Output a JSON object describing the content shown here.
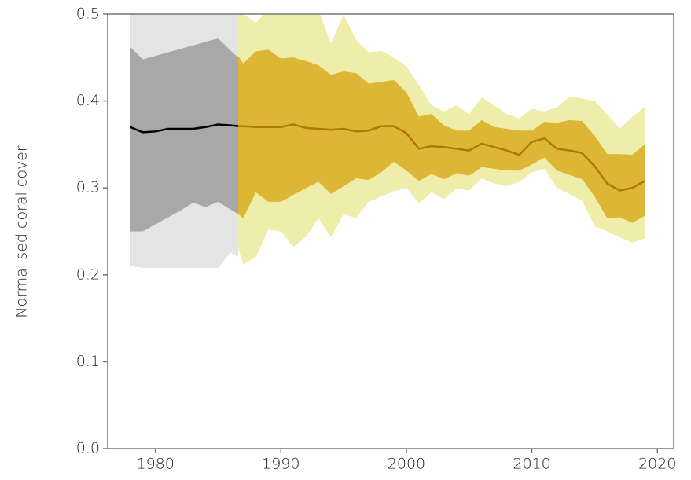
{
  "chart_data": {
    "type": "line",
    "ylabel": "Normalised coral cover",
    "xlim": [
      1976.2,
      2021.3
    ],
    "ylim": [
      0,
      0.5
    ],
    "xticks": [
      1980,
      1990,
      2000,
      2010,
      2020
    ],
    "yticks": [
      {
        "value": 0,
        "label": "0.0"
      },
      0.1,
      0.2,
      0.3,
      0.4,
      0.5
    ],
    "series": [
      {
        "color": "#000000",
        "band_color": "#a8a8a8",
        "outer_color": "#e4e4e4",
        "x": [
          1978,
          1979,
          1980,
          1981,
          1982,
          1983,
          1984,
          1985,
          1986,
          1986.6
        ],
        "values": [
          0.37,
          0.364,
          0.365,
          0.368,
          0.368,
          0.368,
          0.37,
          0.373,
          0.372,
          0.371
        ],
        "upper": [
          0.462,
          0.448,
          0.452,
          0.456,
          0.46,
          0.464,
          0.468,
          0.472,
          0.458,
          0.45
        ],
        "lower": [
          0.25,
          0.25,
          0.258,
          0.266,
          0.274,
          0.283,
          0.278,
          0.284,
          0.275,
          0.27
        ],
        "outer_upper": [
          0.5,
          0.5,
          0.5,
          0.5,
          0.5,
          0.5,
          0.5,
          0.5,
          0.5,
          0.5
        ],
        "outer_lower": [
          0.21,
          0.208,
          0.208,
          0.208,
          0.208,
          0.208,
          0.208,
          0.208,
          0.226,
          0.22
        ]
      },
      {
        "color": "#b07800",
        "band_color": "#dcb634",
        "outer_color": "#eeeeaa",
        "x": [
          1986.6,
          1987,
          1988,
          1989,
          1990,
          1991,
          1992,
          1993,
          1994,
          1995,
          1996,
          1997,
          1998,
          1999,
          2000,
          2001,
          2002,
          2003,
          2004,
          2005,
          2006,
          2007,
          2008,
          2009,
          2010,
          2011,
          2012,
          2013,
          2014,
          2015,
          2016,
          2017,
          2018,
          2019
        ],
        "values": [
          0.371,
          0.371,
          0.37,
          0.37,
          0.37,
          0.373,
          0.369,
          0.368,
          0.367,
          0.368,
          0.365,
          0.366,
          0.371,
          0.371,
          0.363,
          0.345,
          0.348,
          0.347,
          0.345,
          0.343,
          0.351,
          0.347,
          0.343,
          0.338,
          0.353,
          0.357,
          0.345,
          0.343,
          0.34,
          0.325,
          0.305,
          0.297,
          0.3,
          0.308
        ],
        "upper": [
          0.452,
          0.443,
          0.457,
          0.459,
          0.449,
          0.45,
          0.446,
          0.441,
          0.43,
          0.434,
          0.432,
          0.42,
          0.422,
          0.424,
          0.41,
          0.382,
          0.385,
          0.372,
          0.366,
          0.366,
          0.378,
          0.37,
          0.368,
          0.366,
          0.366,
          0.376,
          0.375,
          0.378,
          0.377,
          0.36,
          0.339,
          0.339,
          0.338,
          0.35
        ],
        "lower": [
          0.27,
          0.265,
          0.295,
          0.284,
          0.284,
          0.292,
          0.3,
          0.307,
          0.293,
          0.302,
          0.311,
          0.309,
          0.318,
          0.33,
          0.32,
          0.308,
          0.316,
          0.31,
          0.317,
          0.314,
          0.324,
          0.322,
          0.32,
          0.32,
          0.327,
          0.335,
          0.32,
          0.315,
          0.31,
          0.29,
          0.265,
          0.266,
          0.26,
          0.268
        ],
        "outer_upper": [
          0.505,
          0.5,
          0.49,
          0.505,
          0.505,
          0.5,
          0.505,
          0.505,
          0.466,
          0.5,
          0.47,
          0.456,
          0.458,
          0.45,
          0.44,
          0.418,
          0.395,
          0.388,
          0.395,
          0.385,
          0.404,
          0.395,
          0.385,
          0.38,
          0.391,
          0.388,
          0.393,
          0.405,
          0.403,
          0.4,
          0.385,
          0.368,
          0.382,
          0.393
        ],
        "outer_lower": [
          0.23,
          0.212,
          0.22,
          0.252,
          0.25,
          0.232,
          0.244,
          0.265,
          0.243,
          0.27,
          0.265,
          0.284,
          0.29,
          0.296,
          0.3,
          0.282,
          0.295,
          0.287,
          0.299,
          0.297,
          0.311,
          0.305,
          0.302,
          0.307,
          0.318,
          0.322,
          0.3,
          0.293,
          0.285,
          0.256,
          0.25,
          0.243,
          0.237,
          0.242
        ]
      }
    ]
  }
}
